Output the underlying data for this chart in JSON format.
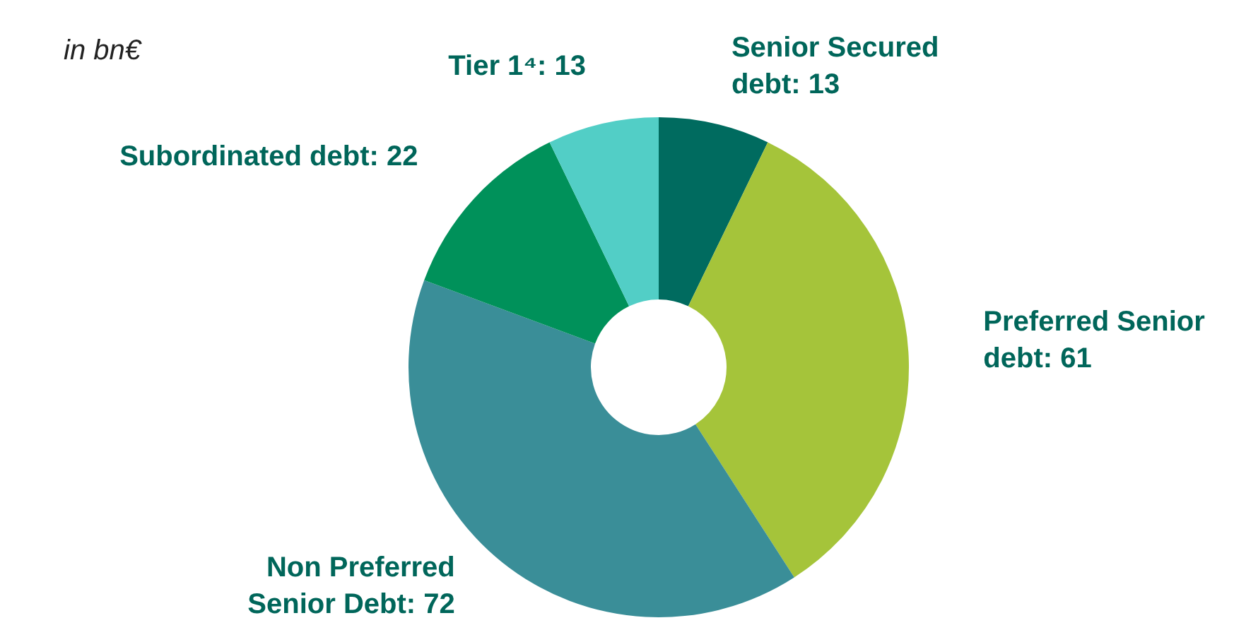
{
  "chart_data": {
    "type": "donut",
    "subtitle": "in bn€",
    "categories": [
      "Senior Secured debt: 13",
      "Preferred Senior debt: 61",
      "Non Preferred Senior Debt: 72",
      "Subordinated debt: 22",
      "Tier 1⁴: 13"
    ],
    "values": [
      13,
      61,
      72,
      22,
      13
    ],
    "colors": [
      "#006b5f",
      "#a5c43a",
      "#3a8e98",
      "#00915a",
      "#52cec6"
    ],
    "legend": false
  }
}
